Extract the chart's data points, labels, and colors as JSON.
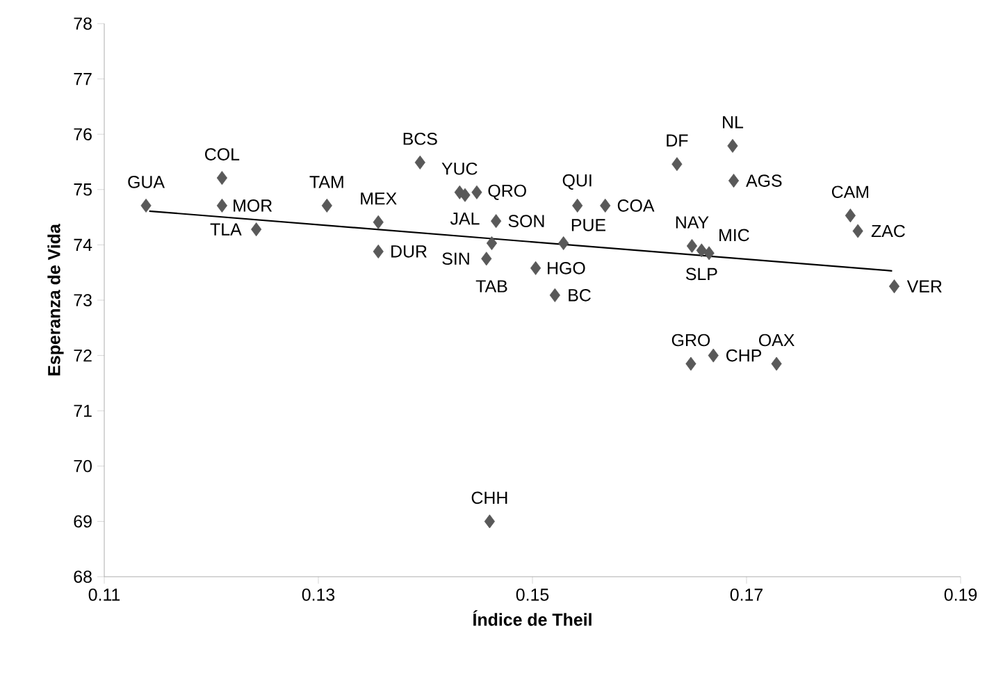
{
  "chart_data": {
    "type": "scatter",
    "xlabel": "Índice de Theil",
    "ylabel": "Esperanza de Vida",
    "xlim": [
      0.11,
      0.19
    ],
    "xticks": [
      0.11,
      0.13,
      0.15,
      0.17,
      0.19
    ],
    "ylim": [
      68,
      78
    ],
    "yticks": [
      68,
      69,
      70,
      71,
      72,
      73,
      74,
      75,
      76,
      77,
      78
    ],
    "series": [
      {
        "color": "#595959",
        "marker": "diamond",
        "x": [
          0.1139,
          0.121,
          0.121,
          0.1242,
          0.1308,
          0.1356,
          0.1356,
          0.1395,
          0.1432,
          0.1437,
          0.1448,
          0.1466,
          0.1462,
          0.1457,
          0.1503,
          0.1529,
          0.1521,
          0.1542,
          0.1568,
          0.1635,
          0.1687,
          0.1688,
          0.1649,
          0.1658,
          0.1665,
          0.1797,
          0.1804,
          0.1838,
          0.1648,
          0.1669,
          0.1728,
          0.146
        ],
        "values": [
          74.71,
          75.21,
          74.71,
          74.28,
          74.71,
          74.41,
          73.88,
          75.49,
          74.95,
          74.9,
          74.95,
          74.43,
          74.03,
          73.75,
          73.58,
          74.03,
          73.09,
          74.71,
          74.71,
          75.46,
          75.79,
          75.16,
          73.98,
          73.9,
          73.85,
          74.53,
          74.25,
          73.25,
          71.85,
          72.0,
          71.85,
          69.0
        ],
        "value_labels": [
          "GUA",
          "COL",
          "MOR",
          "TLA",
          "TAM",
          "MEX",
          "DUR",
          "BCS",
          "YUC",
          "JAL",
          "QRO",
          "SON",
          "TAB",
          "SIN",
          "HGO",
          "PUE",
          "BC",
          "QUI",
          "COA",
          "DF",
          "NL",
          "AGS",
          "NAY",
          "SLP",
          "MIC",
          "CAM",
          "ZAC",
          "VER",
          "GRO",
          "CHP",
          "OAX",
          "CHH"
        ]
      },
      {
        "type": "line",
        "color": "#000000",
        "marker": "none",
        "x": [
          0.1142,
          0.1836
        ],
        "values": [
          74.61,
          73.53
        ]
      }
    ]
  }
}
